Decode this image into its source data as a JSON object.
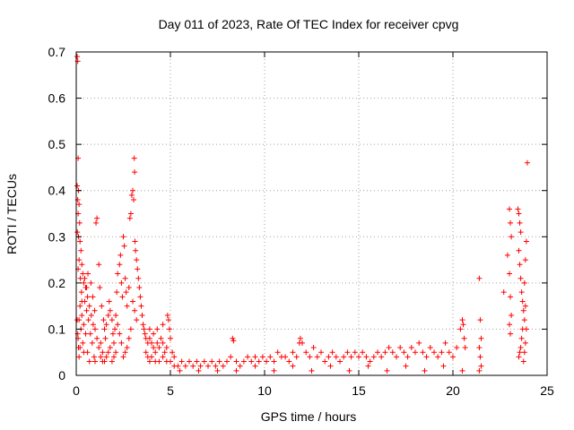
{
  "chart_data": {
    "type": "scatter",
    "title": "Day 011 of 2023, Rate Of TEC Index for receiver cpvg",
    "xlabel": "GPS time / hours",
    "ylabel": "ROTI / TECUs",
    "xlim": [
      0,
      25
    ],
    "ylim": [
      0,
      0.7
    ],
    "xticks": [
      0,
      5,
      10,
      15,
      20,
      25
    ],
    "yticks": [
      0,
      0.1,
      0.2,
      0.3,
      0.4,
      0.5,
      0.6,
      0.7
    ],
    "marker": "+",
    "color": "#ff0000",
    "grid": true,
    "series": [
      {
        "name": "ROTI",
        "points": [
          [
            0.05,
            0.69
          ],
          [
            0.08,
            0.68
          ],
          [
            0.1,
            0.47
          ],
          [
            0.05,
            0.41
          ],
          [
            0.12,
            0.4
          ],
          [
            0.08,
            0.38
          ],
          [
            0.15,
            0.37
          ],
          [
            0.1,
            0.35
          ],
          [
            0.18,
            0.33
          ],
          [
            0.06,
            0.31
          ],
          [
            0.12,
            0.3
          ],
          [
            0.2,
            0.29
          ],
          [
            0.25,
            0.27
          ],
          [
            0.15,
            0.25
          ],
          [
            0.3,
            0.24
          ],
          [
            0.1,
            0.23
          ],
          [
            0.35,
            0.22
          ],
          [
            0.22,
            0.21
          ],
          [
            0.4,
            0.2
          ],
          [
            0.5,
            0.19
          ],
          [
            0.28,
            0.18
          ],
          [
            0.6,
            0.17
          ],
          [
            0.45,
            0.16
          ],
          [
            0.2,
            0.15
          ],
          [
            0.7,
            0.15
          ],
          [
            0.55,
            0.14
          ],
          [
            0.3,
            0.13
          ],
          [
            0.8,
            0.13
          ],
          [
            0.15,
            0.12
          ],
          [
            0.65,
            0.12
          ],
          [
            0.4,
            0.11
          ],
          [
            0.9,
            0.11
          ],
          [
            0.25,
            0.1
          ],
          [
            1.0,
            0.1
          ],
          [
            0.5,
            0.09
          ],
          [
            0.75,
            0.09
          ],
          [
            0.1,
            0.08
          ],
          [
            1.1,
            0.08
          ],
          [
            0.35,
            0.07
          ],
          [
            0.85,
            0.07
          ],
          [
            0.2,
            0.06
          ],
          [
            1.2,
            0.06
          ],
          [
            0.6,
            0.05
          ],
          [
            0.4,
            0.05
          ],
          [
            0.95,
            0.04
          ],
          [
            0.15,
            0.04
          ],
          [
            1.3,
            0.04
          ],
          [
            0.7,
            0.03
          ],
          [
            1.0,
            0.03
          ],
          [
            1.4,
            0.03
          ],
          [
            0.05,
            0.12
          ],
          [
            0.08,
            0.09
          ],
          [
            0.12,
            0.06
          ],
          [
            0.3,
            0.16
          ],
          [
            0.45,
            0.21
          ],
          [
            0.55,
            0.19
          ],
          [
            0.62,
            0.22
          ],
          [
            0.78,
            0.2
          ],
          [
            0.88,
            0.17
          ],
          [
            0.98,
            0.14
          ],
          [
            1.05,
            0.33
          ],
          [
            1.1,
            0.34
          ],
          [
            1.2,
            0.24
          ],
          [
            1.25,
            0.19
          ],
          [
            1.35,
            0.15
          ],
          [
            1.45,
            0.12
          ],
          [
            1.5,
            0.1
          ],
          [
            1.55,
            0.08
          ],
          [
            1.6,
            0.11
          ],
          [
            1.7,
            0.13
          ],
          [
            1.75,
            0.16
          ],
          [
            1.8,
            0.14
          ],
          [
            1.9,
            0.12
          ],
          [
            1.95,
            0.09
          ],
          [
            2.0,
            0.07
          ],
          [
            2.05,
            0.1
          ],
          [
            2.1,
            0.13
          ],
          [
            2.15,
            0.18
          ],
          [
            2.2,
            0.22
          ],
          [
            2.3,
            0.24
          ],
          [
            2.35,
            0.26
          ],
          [
            2.4,
            0.2
          ],
          [
            2.45,
            0.17
          ],
          [
            2.5,
            0.3
          ],
          [
            2.55,
            0.28
          ],
          [
            2.6,
            0.21
          ],
          [
            2.65,
            0.18
          ],
          [
            2.7,
            0.15
          ],
          [
            2.8,
            0.19
          ],
          [
            2.85,
            0.34
          ],
          [
            2.9,
            0.35
          ],
          [
            2.95,
            0.39
          ],
          [
            3.0,
            0.4
          ],
          [
            3.05,
            0.38
          ],
          [
            3.08,
            0.47
          ],
          [
            3.1,
            0.44
          ],
          [
            3.12,
            0.29
          ],
          [
            3.15,
            0.27
          ],
          [
            3.2,
            0.25
          ],
          [
            3.25,
            0.23
          ],
          [
            3.3,
            0.21
          ],
          [
            3.35,
            0.19
          ],
          [
            3.4,
            0.17
          ],
          [
            3.45,
            0.15
          ],
          [
            3.5,
            0.13
          ],
          [
            3.55,
            0.11
          ],
          [
            3.6,
            0.1
          ],
          [
            3.65,
            0.09
          ],
          [
            3.7,
            0.08
          ],
          [
            3.8,
            0.07
          ],
          [
            3.0,
            0.16
          ],
          [
            3.1,
            0.14
          ],
          [
            3.2,
            0.12
          ],
          [
            2.9,
            0.1
          ],
          [
            2.8,
            0.08
          ],
          [
            2.7,
            0.06
          ],
          [
            2.6,
            0.05
          ],
          [
            2.5,
            0.04
          ],
          [
            2.4,
            0.07
          ],
          [
            2.3,
            0.09
          ],
          [
            2.2,
            0.11
          ],
          [
            2.1,
            0.05
          ],
          [
            2.0,
            0.04
          ],
          [
            1.9,
            0.03
          ],
          [
            1.8,
            0.06
          ],
          [
            1.7,
            0.05
          ],
          [
            1.6,
            0.04
          ],
          [
            1.5,
            0.03
          ],
          [
            1.4,
            0.05
          ],
          [
            1.3,
            0.07
          ],
          [
            3.9,
            0.08
          ],
          [
            4.0,
            0.07
          ],
          [
            4.1,
            0.06
          ],
          [
            4.2,
            0.05
          ],
          [
            4.3,
            0.07
          ],
          [
            4.4,
            0.06
          ],
          [
            4.5,
            0.08
          ],
          [
            4.6,
            0.07
          ],
          [
            4.7,
            0.05
          ],
          [
            4.8,
            0.06
          ],
          [
            4.85,
            0.13
          ],
          [
            4.9,
            0.12
          ],
          [
            4.95,
            0.1
          ],
          [
            5.0,
            0.08
          ],
          [
            5.1,
            0.05
          ],
          [
            5.2,
            0.04
          ],
          [
            3.9,
            0.1
          ],
          [
            4.1,
            0.09
          ],
          [
            4.3,
            0.1
          ],
          [
            4.6,
            0.11
          ],
          [
            3.7,
            0.05
          ],
          [
            3.8,
            0.04
          ],
          [
            3.9,
            0.03
          ],
          [
            4.0,
            0.04
          ],
          [
            4.2,
            0.03
          ],
          [
            4.4,
            0.03
          ],
          [
            4.6,
            0.04
          ],
          [
            4.8,
            0.03
          ],
          [
            5.0,
            0.03
          ],
          [
            5.2,
            0.02
          ],
          [
            5.4,
            0.02
          ],
          [
            5.6,
            0.03
          ],
          [
            5.8,
            0.02
          ],
          [
            6.0,
            0.03
          ],
          [
            6.2,
            0.02
          ],
          [
            6.4,
            0.03
          ],
          [
            6.6,
            0.02
          ],
          [
            6.8,
            0.03
          ],
          [
            7.0,
            0.02
          ],
          [
            7.2,
            0.03
          ],
          [
            7.4,
            0.02
          ],
          [
            7.6,
            0.03
          ],
          [
            7.8,
            0.02
          ],
          [
            8.0,
            0.03
          ],
          [
            8.2,
            0.04
          ],
          [
            8.3,
            0.08
          ],
          [
            8.35,
            0.075
          ],
          [
            8.5,
            0.03
          ],
          [
            8.7,
            0.02
          ],
          [
            8.9,
            0.03
          ],
          [
            9.1,
            0.04
          ],
          [
            9.3,
            0.03
          ],
          [
            9.5,
            0.04
          ],
          [
            9.7,
            0.03
          ],
          [
            9.9,
            0.04
          ],
          [
            10.1,
            0.03
          ],
          [
            10.3,
            0.04
          ],
          [
            10.5,
            0.03
          ],
          [
            10.7,
            0.05
          ],
          [
            10.9,
            0.04
          ],
          [
            11.1,
            0.04
          ],
          [
            11.3,
            0.03
          ],
          [
            11.5,
            0.05
          ],
          [
            11.7,
            0.04
          ],
          [
            11.85,
            0.07
          ],
          [
            11.9,
            0.08
          ],
          [
            12.0,
            0.07
          ],
          [
            12.2,
            0.05
          ],
          [
            12.4,
            0.04
          ],
          [
            12.6,
            0.06
          ],
          [
            12.8,
            0.04
          ],
          [
            13.0,
            0.05
          ],
          [
            13.2,
            0.03
          ],
          [
            13.4,
            0.04
          ],
          [
            13.6,
            0.05
          ],
          [
            13.8,
            0.04
          ],
          [
            14.0,
            0.03
          ],
          [
            14.2,
            0.04
          ],
          [
            14.4,
            0.05
          ],
          [
            14.6,
            0.04
          ],
          [
            14.8,
            0.05
          ],
          [
            15.0,
            0.04
          ],
          [
            15.2,
            0.05
          ],
          [
            15.4,
            0.04
          ],
          [
            15.6,
            0.03
          ],
          [
            15.8,
            0.04
          ],
          [
            16.0,
            0.05
          ],
          [
            16.2,
            0.04
          ],
          [
            16.4,
            0.05
          ],
          [
            16.6,
            0.06
          ],
          [
            16.8,
            0.05
          ],
          [
            17.0,
            0.04
          ],
          [
            17.2,
            0.06
          ],
          [
            17.4,
            0.05
          ],
          [
            17.6,
            0.04
          ],
          [
            17.8,
            0.06
          ],
          [
            18.0,
            0.05
          ],
          [
            18.2,
            0.07
          ],
          [
            18.4,
            0.05
          ],
          [
            18.6,
            0.04
          ],
          [
            18.8,
            0.06
          ],
          [
            19.0,
            0.05
          ],
          [
            19.2,
            0.04
          ],
          [
            19.4,
            0.05
          ],
          [
            19.6,
            0.07
          ],
          [
            19.8,
            0.05
          ],
          [
            20.0,
            0.04
          ],
          [
            20.2,
            0.06
          ],
          [
            20.4,
            0.1
          ],
          [
            20.5,
            0.12
          ],
          [
            20.55,
            0.11
          ],
          [
            20.6,
            0.08
          ],
          [
            20.65,
            0.06
          ],
          [
            5.5,
            0.01
          ],
          [
            6.5,
            0.01
          ],
          [
            7.5,
            0.01
          ],
          [
            8.5,
            0.01
          ],
          [
            9.5,
            0.02
          ],
          [
            10.5,
            0.01
          ],
          [
            11.5,
            0.02
          ],
          [
            12.5,
            0.01
          ],
          [
            13.5,
            0.02
          ],
          [
            14.5,
            0.01
          ],
          [
            15.5,
            0.02
          ],
          [
            16.5,
            0.01
          ],
          [
            17.5,
            0.02
          ],
          [
            18.5,
            0.01
          ],
          [
            19.5,
            0.02
          ],
          [
            20.5,
            0.01
          ],
          [
            21.4,
            0.21
          ],
          [
            21.45,
            0.12
          ],
          [
            21.5,
            0.08
          ],
          [
            21.4,
            0.06
          ],
          [
            21.45,
            0.04
          ],
          [
            21.5,
            0.02
          ],
          [
            21.4,
            0.01
          ],
          [
            22.7,
            0.18
          ],
          [
            22.9,
            0.26
          ],
          [
            23.0,
            0.36
          ],
          [
            23.05,
            0.33
          ],
          [
            23.1,
            0.3
          ],
          [
            23.0,
            0.22
          ],
          [
            23.05,
            0.17
          ],
          [
            23.1,
            0.13
          ],
          [
            23.0,
            0.11
          ],
          [
            23.05,
            0.09
          ],
          [
            23.45,
            0.36
          ],
          [
            23.5,
            0.35
          ],
          [
            23.55,
            0.33
          ],
          [
            23.6,
            0.31
          ],
          [
            23.5,
            0.27
          ],
          [
            23.55,
            0.24
          ],
          [
            23.6,
            0.21
          ],
          [
            23.65,
            0.18
          ],
          [
            23.7,
            0.16
          ],
          [
            23.75,
            0.14
          ],
          [
            23.8,
            0.12
          ],
          [
            23.7,
            0.1
          ],
          [
            23.65,
            0.08
          ],
          [
            23.6,
            0.06
          ],
          [
            23.55,
            0.05
          ],
          [
            23.5,
            0.04
          ],
          [
            23.75,
            0.03
          ],
          [
            23.85,
            0.25
          ],
          [
            23.9,
            0.29
          ],
          [
            23.95,
            0.46
          ],
          [
            23.8,
            0.2
          ],
          [
            23.85,
            0.15
          ],
          [
            23.9,
            0.1
          ],
          [
            23.85,
            0.07
          ],
          [
            23.8,
            0.05
          ]
        ]
      }
    ]
  }
}
